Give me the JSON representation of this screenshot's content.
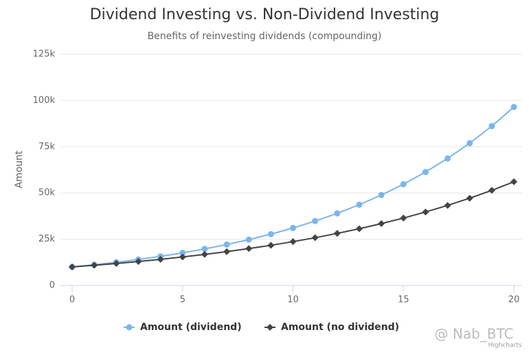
{
  "chart_data": {
    "type": "line",
    "title": "Dividend Investing vs. Non-Dividend Investing",
    "subtitle": "Benefits of reinvesting dividends (compounding)",
    "y_label": "Amount",
    "x": [
      0,
      1,
      2,
      3,
      4,
      5,
      6,
      7,
      8,
      9,
      10,
      11,
      12,
      13,
      14,
      15,
      16,
      17,
      18,
      19,
      20
    ],
    "series": [
      {
        "name": "Amount (dividend)",
        "color": "#7cb5ec",
        "marker": "circle",
        "values": [
          10000,
          11200,
          12544,
          14049,
          15735,
          17623,
          19738,
          22107,
          24760,
          27731,
          31058,
          34785,
          38960,
          43635,
          48871,
          54736,
          61304,
          68660,
          76900,
          86128,
          96463
        ]
      },
      {
        "name": "Amount (no dividend)",
        "color": "#434348",
        "marker": "diamond",
        "values": [
          10000,
          10900,
          11881,
          12950,
          14116,
          15386,
          16771,
          18280,
          19926,
          21719,
          23674,
          25804,
          28127,
          30658,
          33417,
          36425,
          39703,
          43276,
          47171,
          51417,
          56044
        ]
      }
    ],
    "xlim": [
      0,
      20
    ],
    "xticks": [
      0,
      5,
      10,
      15,
      20
    ],
    "ylim": [
      0,
      125000
    ],
    "yticks": [
      0,
      {
        "value": 25000,
        "label": "25k"
      },
      {
        "value": 50000,
        "label": "50k"
      },
      {
        "value": 75000,
        "label": "75k"
      },
      {
        "value": 100000,
        "label": "100k"
      },
      {
        "value": 125000,
        "label": "125k"
      }
    ],
    "grid": true,
    "credits": "Highcharts",
    "watermark": "@ Nab_BTC"
  }
}
